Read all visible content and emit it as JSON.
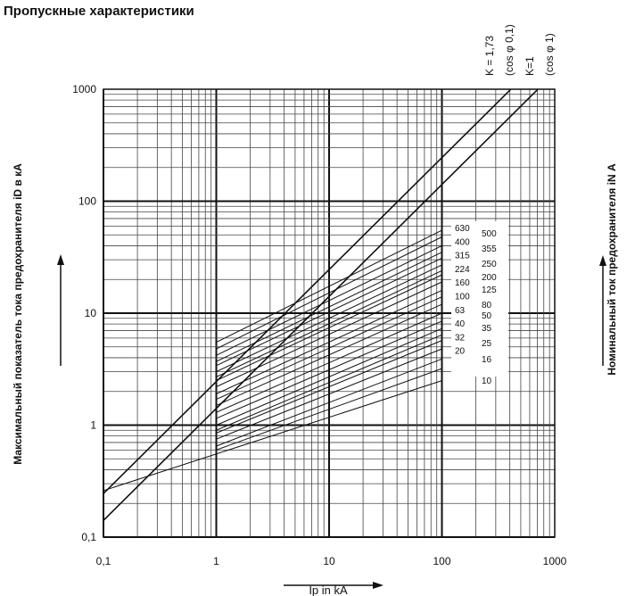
{
  "chart_data": {
    "type": "line",
    "title": "Пропускные характеристики",
    "xlabel": "Ip in kA",
    "ylabel": "Максимальный показатель тока предохранителя iD в кА",
    "y2label": "Номинальный ток предохранителя iN А",
    "x_scale": "log",
    "y_scale": "log",
    "xlim": [
      0.1,
      1000
    ],
    "ylim": [
      0.1,
      1000
    ],
    "grid": true,
    "x_ticks": [
      {
        "value": 0.1,
        "label": "0,1"
      },
      {
        "value": 1,
        "label": "1"
      },
      {
        "value": 10,
        "label": "10"
      },
      {
        "value": 100,
        "label": "100"
      },
      {
        "value": 1000,
        "label": "1000"
      }
    ],
    "y_ticks": [
      {
        "value": 0.1,
        "label": "0,1"
      },
      {
        "value": 1,
        "label": "1"
      },
      {
        "value": 10,
        "label": "10"
      },
      {
        "value": 100,
        "label": "100"
      },
      {
        "value": 1000,
        "label": "1000"
      }
    ],
    "reference_lines": [
      {
        "label": "K = 1,73",
        "sublabel": "(cos φ 0,1)",
        "x": [
          0.1,
          1000
        ],
        "y": [
          0.245,
          2450
        ]
      },
      {
        "label": "K=1",
        "sublabel": "(cos φ 1)",
        "x": [
          0.1,
          1000
        ],
        "y": [
          0.141,
          1410
        ]
      }
    ],
    "rating_labels_left": [
      "630",
      "400",
      "315",
      "224",
      "160",
      "100",
      "63",
      "40",
      "32",
      "20"
    ],
    "rating_labels_right": [
      "500",
      "355",
      "250",
      "200",
      "125",
      "80",
      "50",
      "35",
      "25",
      "16",
      "10"
    ],
    "series": [
      {
        "name": "630",
        "x": [
          1,
          100
        ],
        "y": [
          5.5,
          55
        ]
      },
      {
        "name": "500",
        "x": [
          1,
          100
        ],
        "y": [
          4.8,
          48
        ]
      },
      {
        "name": "400",
        "x": [
          1,
          100
        ],
        "y": [
          4.2,
          40
        ]
      },
      {
        "name": "355",
        "x": [
          1,
          100
        ],
        "y": [
          3.7,
          35
        ]
      },
      {
        "name": "315",
        "x": [
          1,
          100
        ],
        "y": [
          3.4,
          31
        ]
      },
      {
        "name": "250",
        "x": [
          1,
          100
        ],
        "y": [
          3.0,
          27
        ]
      },
      {
        "name": "224",
        "x": [
          1,
          100
        ],
        "y": [
          2.7,
          24
        ]
      },
      {
        "name": "200",
        "x": [
          1,
          100
        ],
        "y": [
          2.5,
          22
        ]
      },
      {
        "name": "160",
        "x": [
          1,
          100
        ],
        "y": [
          2.2,
          19
        ]
      },
      {
        "name": "125",
        "x": [
          1,
          100
        ],
        "y": [
          1.9,
          16
        ]
      },
      {
        "name": "100",
        "x": [
          1,
          100
        ],
        "y": [
          1.7,
          14
        ]
      },
      {
        "name": "80",
        "x": [
          1,
          100
        ],
        "y": [
          1.5,
          12
        ]
      },
      {
        "name": "63",
        "x": [
          1,
          100
        ],
        "y": [
          1.3,
          10
        ]
      },
      {
        "name": "50",
        "x": [
          1,
          100
        ],
        "y": [
          1.15,
          8.5
        ]
      },
      {
        "name": "40",
        "x": [
          1,
          100
        ],
        "y": [
          1.0,
          7.3
        ]
      },
      {
        "name": "35",
        "x": [
          1,
          100
        ],
        "y": [
          0.9,
          6.4
        ]
      },
      {
        "name": "32",
        "x": [
          1,
          100
        ],
        "y": [
          0.85,
          5.7
        ]
      },
      {
        "name": "25",
        "x": [
          1,
          100
        ],
        "y": [
          0.75,
          4.8
        ]
      },
      {
        "name": "20",
        "x": [
          1,
          100
        ],
        "y": [
          0.65,
          3.9
        ]
      },
      {
        "name": "16",
        "x": [
          1,
          100
        ],
        "y": [
          0.6,
          3.2
        ]
      },
      {
        "name": "10",
        "x": [
          0.1,
          100
        ],
        "y": [
          0.26,
          2.5
        ]
      }
    ]
  }
}
